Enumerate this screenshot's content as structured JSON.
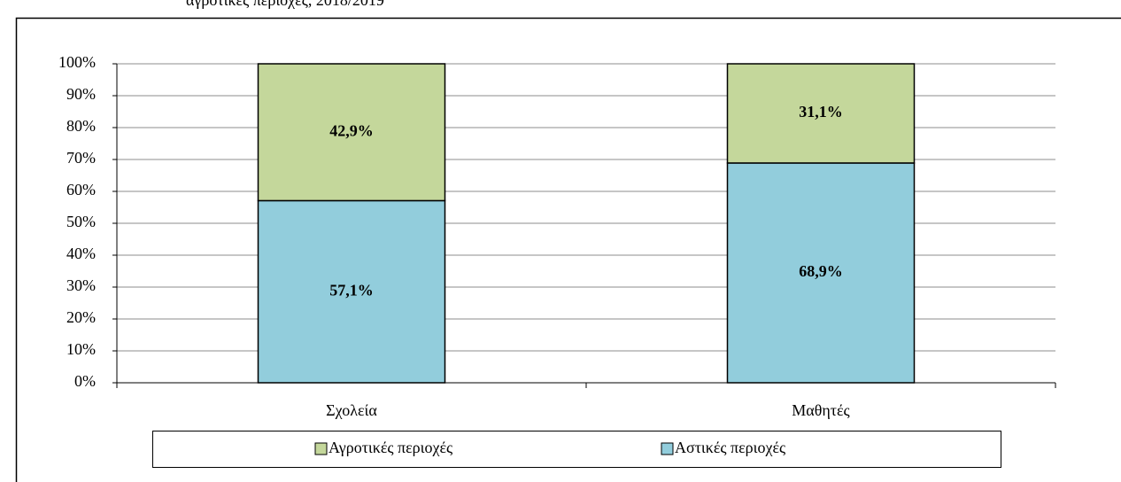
{
  "chart_data": {
    "type": "stacked_bar",
    "title": "αγροτικές περιοχές, 2018/2019",
    "categories": [
      "Σχολεία",
      "Μαθητές"
    ],
    "series": [
      {
        "name": "Αστικές περιοχές",
        "color": "#92cddc",
        "values": [
          57.1,
          68.9
        ],
        "value_labels": [
          "57,1%",
          "68,9%"
        ]
      },
      {
        "name": "Αγροτικές περιοχές",
        "color": "#c4d79b",
        "values": [
          42.9,
          31.1
        ],
        "value_labels": [
          "42,9%",
          "31,1%"
        ]
      }
    ],
    "ylim": [
      0,
      100
    ],
    "yticks": [
      {
        "value": 0,
        "label": "0%"
      },
      {
        "value": 10,
        "label": "10%"
      },
      {
        "value": 20,
        "label": "20%"
      },
      {
        "value": 30,
        "label": "30%"
      },
      {
        "value": 40,
        "label": "40%"
      },
      {
        "value": 50,
        "label": "50%"
      },
      {
        "value": 60,
        "label": "60%"
      },
      {
        "value": 70,
        "label": "70%"
      },
      {
        "value": 80,
        "label": "80%"
      },
      {
        "value": 90,
        "label": "90%"
      },
      {
        "value": 100,
        "label": "100%"
      }
    ],
    "grid": true,
    "legend": "bottom"
  }
}
